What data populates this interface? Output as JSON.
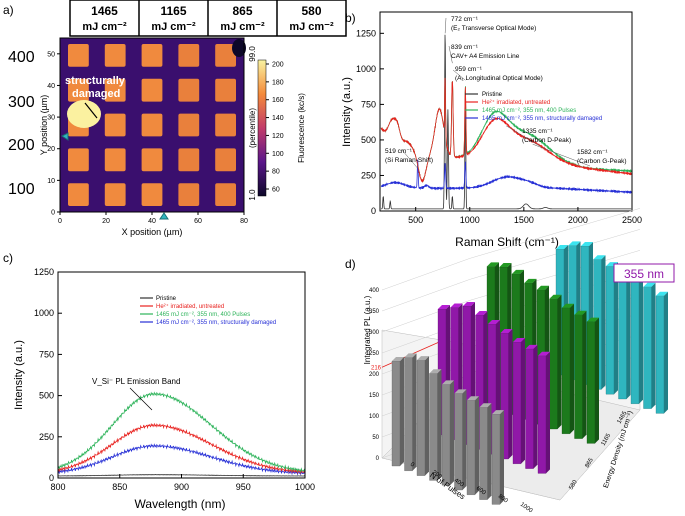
{
  "panel_letters": {
    "a": "a)",
    "b": "b)",
    "c": "c)",
    "d": "d)"
  },
  "fluence_boxes": [
    {
      "value": "1465",
      "unit": "mJ cm⁻²"
    },
    {
      "value": "1165",
      "unit": "mJ cm⁻²"
    },
    {
      "value": "865",
      "unit": "mJ cm⁻²"
    },
    {
      "value": "580",
      "unit": "mJ cm⁻²"
    }
  ],
  "side_labels": [
    "400",
    "300",
    "200",
    "100"
  ],
  "chart_data": [
    {
      "id": "a",
      "type": "heatmap",
      "xlabel": "X position (µm)",
      "ylabel": "Y position (µm)",
      "xticks": [
        "0",
        "20",
        "40",
        "60",
        "80"
      ],
      "yticks": [
        "0",
        "10",
        "20",
        "30",
        "40",
        "50"
      ],
      "xlim": [
        0,
        80
      ],
      "ylim": [
        0,
        55
      ],
      "annotation": [
        "structurally",
        "damaged"
      ],
      "colorbar": {
        "label": "Fluorescence (kc/s)",
        "ticks": [
          "60",
          "80",
          "100",
          "120",
          "140",
          "160",
          "180",
          "200"
        ],
        "percentile_label": "(percentile)",
        "percentile_top": "99.0",
        "percentile_bottom": "1.0"
      },
      "grid_rows": 5,
      "grid_cols": 5
    },
    {
      "id": "b",
      "type": "line",
      "xlabel": "Raman Shift (cm⁻¹)",
      "ylabel": "Intensity (a.u.)",
      "xlim": [
        170,
        2500
      ],
      "ylim": [
        0,
        1400
      ],
      "xticks": [
        500,
        1000,
        1500,
        2000,
        2500
      ],
      "yticks": [
        0,
        250,
        500,
        750,
        1000,
        1250
      ],
      "legend": [
        {
          "name": "Pristine",
          "color": "#333333"
        },
        {
          "name": "He²⁺ irradiated, untreated",
          "color": "#e8221f"
        },
        {
          "name": "1465 mJ cm⁻², 355 nm, 400 Pulses",
          "color": "#2db35a"
        },
        {
          "name": "1465 mJ cm⁻², 355 nm, structurally damaged",
          "color": "#2730d6"
        }
      ],
      "annotations": [
        {
          "lines": [
            "772 cm⁻¹",
            "(E₂ Transverse Optical Mode)"
          ]
        },
        {
          "lines": [
            "839 cm⁻¹",
            "CAV+ A4 Emission Line"
          ]
        },
        {
          "lines": [
            "959 cm⁻¹",
            "(A₁ Longitudinal Optical Mode)"
          ]
        },
        {
          "lines": [
            "519 cm⁻¹",
            "(Si Raman-Shift)"
          ]
        },
        {
          "lines": [
            "1335 cm⁻¹",
            "(Carbon D-Peak)"
          ]
        },
        {
          "lines": [
            "1582 cm⁻¹",
            "(Carbon G-Peak)"
          ]
        }
      ]
    },
    {
      "id": "c",
      "type": "line",
      "xlabel": "Wavelength (nm)",
      "ylabel": "Intensity (a.u.)",
      "xlim": [
        800,
        1000
      ],
      "ylim": [
        0,
        1250
      ],
      "xticks": [
        800,
        850,
        900,
        950,
        1000
      ],
      "yticks": [
        0,
        250,
        500,
        750,
        1000,
        1250
      ],
      "peak_nm": 878,
      "series": [
        {
          "name": "Pristine",
          "color": "#333333",
          "peak": 20,
          "base": 12
        },
        {
          "name": "He²⁺ irradiated, untreated",
          "color": "#e8221f",
          "peak": 320,
          "base": 28
        },
        {
          "name": "1465 mJ cm⁻², 355 nm, 400 Pulses",
          "color": "#2db35a",
          "peak": 510,
          "base": 30
        },
        {
          "name": "1465 mJ cm⁻², 355 nm, structurally damaged",
          "color": "#2730d6",
          "peak": 195,
          "base": 25
        }
      ],
      "annotation": "V_Si⁻ PL Emission Band"
    },
    {
      "id": "d",
      "type": "bar",
      "title": "355 nm",
      "zlabel": "Integrated PL (a.u.)",
      "xlabel": "N of Pulses",
      "ylabel": "Energy Density (mJ cm⁻²)",
      "zticks": [
        0,
        50,
        100,
        150,
        200,
        250,
        300,
        350,
        400
      ],
      "reference_value": 216,
      "pulse_ticks": [
        "0",
        "200",
        "400",
        "600",
        "800",
        "1000"
      ],
      "fluence_ticks": [
        "580",
        "865",
        "1165",
        "1465"
      ],
      "series": [
        {
          "fluence": "580",
          "color": "#8a8a8a",
          "values": [
            250,
            270,
            275,
            255,
            240,
            230,
            225,
            220,
            215
          ]
        },
        {
          "fluence": "865",
          "color": "#9018a8",
          "values": [
            300,
            315,
            330,
            320,
            310,
            300,
            290,
            285,
            280
          ]
        },
        {
          "fluence": "1165",
          "color": "#1c7a1c",
          "values": [
            330,
            340,
            335,
            325,
            320,
            310,
            300,
            295,
            290
          ]
        },
        {
          "fluence": "1465",
          "color": "#2fb6bf",
          "values": [
            300,
            320,
            330,
            310,
            305,
            300,
            295,
            290,
            280
          ]
        }
      ]
    }
  ]
}
